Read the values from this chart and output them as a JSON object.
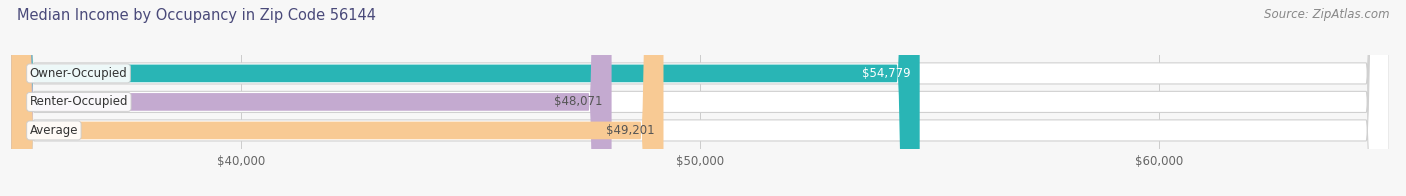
{
  "title": "Median Income by Occupancy in Zip Code 56144",
  "source": "Source: ZipAtlas.com",
  "categories": [
    "Owner-Occupied",
    "Renter-Occupied",
    "Average"
  ],
  "values": [
    54779,
    48071,
    49201
  ],
  "bar_colors": [
    "#29b5b5",
    "#c4aad0",
    "#f8ca94"
  ],
  "value_labels": [
    "$54,779",
    "$48,071",
    "$49,201"
  ],
  "value_label_colors": [
    "#ffffff",
    "#555555",
    "#555555"
  ],
  "xlim_data": [
    0,
    65000
  ],
  "xlim_display": [
    35000,
    65000
  ],
  "xticks": [
    40000,
    50000,
    60000
  ],
  "xtick_labels": [
    "$40,000",
    "$50,000",
    "$60,000"
  ],
  "title_fontsize": 10.5,
  "source_fontsize": 8.5,
  "label_fontsize": 8.5,
  "value_fontsize": 8.5,
  "background_color": "#f7f7f7",
  "bar_bg_color": "#e8e8e8",
  "bar_border_color": "#d0d0d0",
  "title_color": "#4a4a7a",
  "source_color": "#888888"
}
